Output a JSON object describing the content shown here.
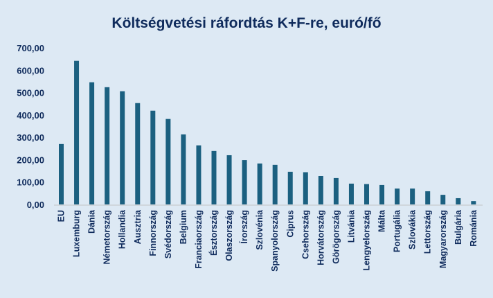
{
  "chart_data": {
    "type": "bar",
    "title": "Költségvetési ráfordtás K+F-re, euró/fő",
    "xlabel": "",
    "ylabel": "",
    "ylim": [
      0,
      700
    ],
    "yticks": [
      "0,00",
      "100,00",
      "200,00",
      "300,00",
      "400,00",
      "500,00",
      "600,00",
      "700,00"
    ],
    "grid": false,
    "bar_color": "#1b6080",
    "categories": [
      "EU",
      "Luxemburg",
      "Dánia",
      "Németország",
      "Hollandia",
      "Ausztria",
      "Finnország",
      "Svédország",
      "Belgium",
      "Franciaország",
      "Észtország",
      "Olaszország",
      "Írország",
      "Szlovénia",
      "Spanyolország",
      "Ciprus",
      "Csehország",
      "Horvátország",
      "Görögország",
      "Litvánia",
      "Lengyelország",
      "Málta",
      "Portugália",
      "Szlovákia",
      "Lettország",
      "Magyarország",
      "Bulgária",
      "Románia"
    ],
    "values": [
      270,
      642,
      546,
      524,
      506,
      453,
      419,
      382,
      313,
      264,
      239,
      220,
      198,
      183,
      177,
      146,
      144,
      127,
      118,
      93,
      91,
      87,
      71,
      71,
      59,
      43,
      28,
      15
    ]
  }
}
